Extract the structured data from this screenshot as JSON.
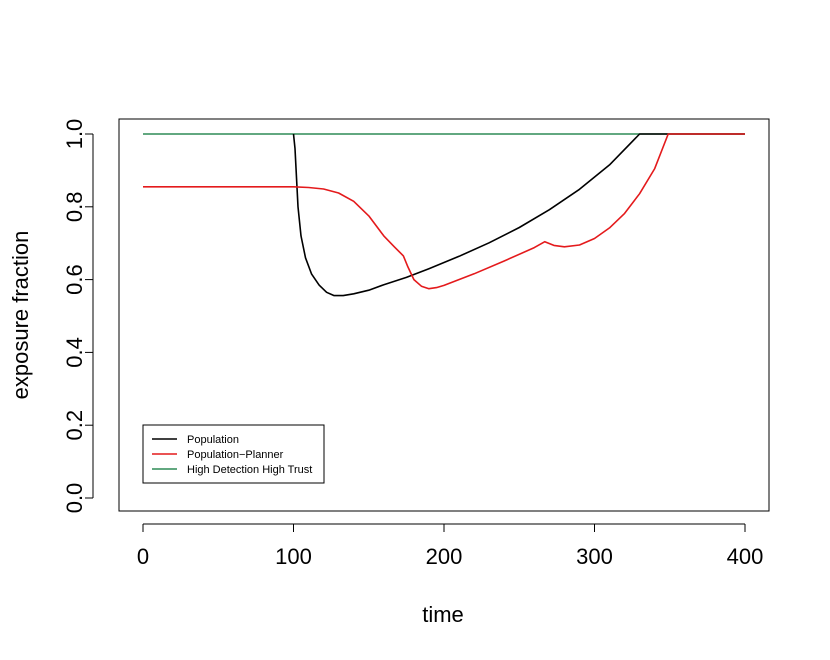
{
  "chart_data": {
    "type": "line",
    "title": "",
    "xlabel": "time",
    "ylabel": "exposure fraction",
    "xlim": [
      0,
      400
    ],
    "ylim": [
      0,
      1
    ],
    "x_ticks": [
      "0",
      "100",
      "200",
      "300",
      "400"
    ],
    "y_ticks": [
      "0.0",
      "0.2",
      "0.4",
      "0.6",
      "0.8",
      "1.0"
    ],
    "grid": false,
    "legend_position": "bottom-left",
    "series": [
      {
        "name": "Population",
        "color": "#000000",
        "x": [
          100,
          101,
          102,
          103,
          105,
          108,
          112,
          117,
          122,
          127,
          133,
          140,
          150,
          160,
          175,
          190,
          210,
          230,
          250,
          270,
          290,
          310,
          330,
          350,
          400
        ],
        "y": [
          1.0,
          0.96,
          0.88,
          0.8,
          0.72,
          0.66,
          0.615,
          0.585,
          0.565,
          0.556,
          0.556,
          0.561,
          0.571,
          0.586,
          0.606,
          0.63,
          0.664,
          0.701,
          0.743,
          0.792,
          0.848,
          0.915,
          1.0,
          1.0,
          1.0
        ]
      },
      {
        "name": "Population−Planner",
        "color": "#e41a1c",
        "x": [
          0,
          20,
          40,
          60,
          80,
          100,
          110,
          120,
          130,
          140,
          150,
          160,
          167,
          173,
          176,
          180,
          185,
          190,
          195,
          200,
          220,
          240,
          260,
          267,
          273,
          280,
          290,
          300,
          310,
          320,
          330,
          340,
          349,
          400
        ],
        "y": [
          0.855,
          0.855,
          0.855,
          0.855,
          0.855,
          0.855,
          0.853,
          0.849,
          0.838,
          0.815,
          0.775,
          0.72,
          0.69,
          0.665,
          0.635,
          0.6,
          0.582,
          0.575,
          0.578,
          0.584,
          0.616,
          0.651,
          0.688,
          0.704,
          0.694,
          0.69,
          0.695,
          0.713,
          0.742,
          0.782,
          0.836,
          0.905,
          1.0,
          1.0
        ]
      },
      {
        "name": "High Detection High Trust",
        "color": "#2e8b57",
        "x": [
          0,
          400
        ],
        "y": [
          1.0,
          1.0
        ]
      }
    ]
  }
}
